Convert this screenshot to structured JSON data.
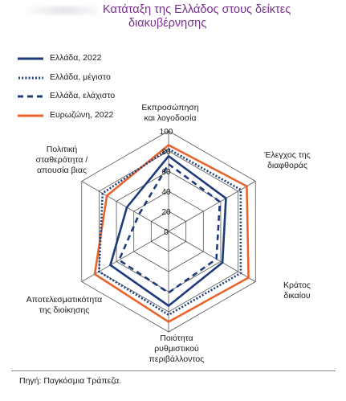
{
  "header": {
    "title_line1": "Κατάταξη της Ελλάδος στους δείκτες",
    "title_line2": "διακυβέρνησης"
  },
  "colors": {
    "navy": "#1d3a7a",
    "orange": "#e8642c",
    "grid": "#555555"
  },
  "chart_data": {
    "type": "radar",
    "title": "Κατάταξη της Ελλάδος στους δείκτες διακυβέρνησης",
    "axes": [
      "Εκπροσώπηση και λογοδοσία",
      "Έλεγχος της διαφθοράς",
      "Κράτος δικαίου",
      "Ποιότητα ρυθμιστικού περιβάλλοντος",
      "Αποτελεσματικότητα της διοίκησης",
      "Πολιτική σταθερότητα / απουσία βιας"
    ],
    "ticks": [
      0,
      20,
      40,
      60,
      80,
      100
    ],
    "range": [
      0,
      100
    ],
    "series": [
      {
        "name": "Ελλάδα, 2022",
        "style": "solid",
        "color": "#1d3a7a",
        "values": [
          75,
          66,
          62,
          74,
          67,
          48
        ]
      },
      {
        "name": "Ελλάδα, μέγιστο",
        "style": "dotted",
        "color": "#1d3a7a",
        "values": [
          82,
          83,
          83,
          83,
          80,
          76
        ]
      },
      {
        "name": "Ελλάδα, ελάχιστο",
        "style": "dashed",
        "color": "#1d3a7a",
        "values": [
          67,
          59,
          55,
          61,
          57,
          34
        ]
      },
      {
        "name": "Ευρωζώνη, 2022",
        "style": "solid",
        "color": "#e8642c",
        "values": [
          86,
          90,
          92,
          90,
          85,
          71
        ]
      }
    ],
    "legend_position": "top-left"
  },
  "labels": {
    "axis_lines": [
      [
        "Εκπροσώπηση",
        "και λογοδοσία"
      ],
      [
        "Έλεγχος της",
        "διαφθοράς"
      ],
      [
        "Κράτος",
        "δικαίου"
      ],
      [
        "Ποιότητα",
        "ρυθμιστικού",
        "περιβάλλοντος"
      ],
      [
        "Αποτελεσματικότητα",
        "της διοίκησης"
      ],
      [
        "Πολιτική",
        "σταθερότητα /",
        "απουσία βιας"
      ]
    ]
  },
  "footer": {
    "source": "Πηγή: Παγκόσμια Τράπεζα."
  }
}
